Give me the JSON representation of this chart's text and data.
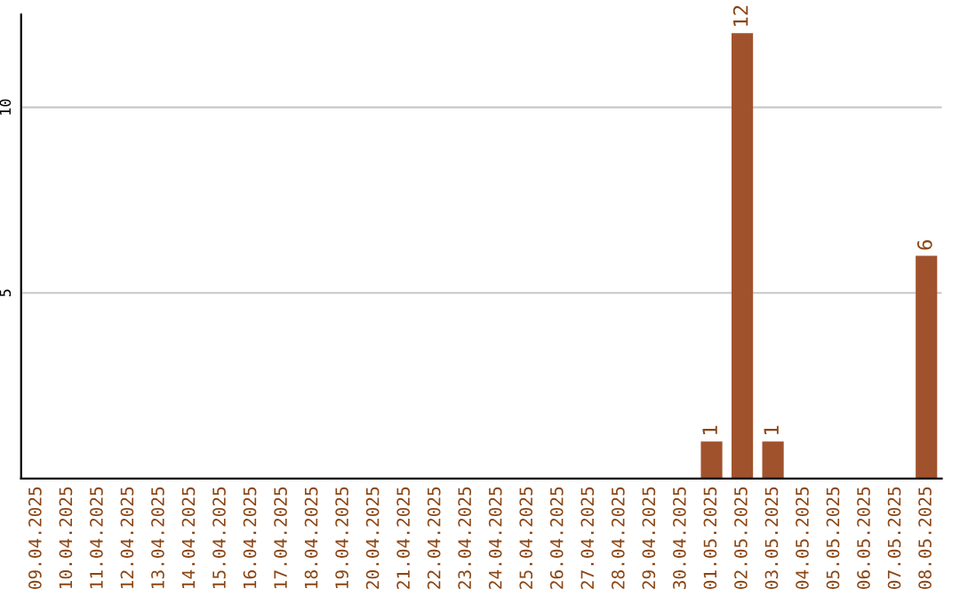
{
  "chart_data": {
    "type": "bar",
    "categories": [
      "09.04.2025",
      "10.04.2025",
      "11.04.2025",
      "12.04.2025",
      "13.04.2025",
      "14.04.2025",
      "15.04.2025",
      "16.04.2025",
      "17.04.2025",
      "18.04.2025",
      "19.04.2025",
      "20.04.2025",
      "21.04.2025",
      "22.04.2025",
      "23.04.2025",
      "24.04.2025",
      "25.04.2025",
      "26.04.2025",
      "27.04.2025",
      "28.04.2025",
      "29.04.2025",
      "30.04.2025",
      "01.05.2025",
      "02.05.2025",
      "03.05.2025",
      "04.05.2025",
      "05.05.2025",
      "06.05.2025",
      "07.05.2025",
      "08.05.2025"
    ],
    "values": [
      0,
      0,
      0,
      0,
      0,
      0,
      0,
      0,
      0,
      0,
      0,
      0,
      0,
      0,
      0,
      0,
      0,
      0,
      0,
      0,
      0,
      0,
      1,
      12,
      1,
      0,
      0,
      0,
      0,
      6
    ],
    "color": "#a0522d",
    "ylim": [
      0,
      12.5
    ],
    "yticks": [
      5,
      10
    ],
    "grid": "y",
    "value_labels": [
      null,
      null,
      null,
      null,
      null,
      null,
      null,
      null,
      null,
      null,
      null,
      null,
      null,
      null,
      null,
      null,
      null,
      null,
      null,
      null,
      null,
      null,
      "1",
      "12",
      "1",
      null,
      null,
      null,
      null,
      "6"
    ]
  }
}
